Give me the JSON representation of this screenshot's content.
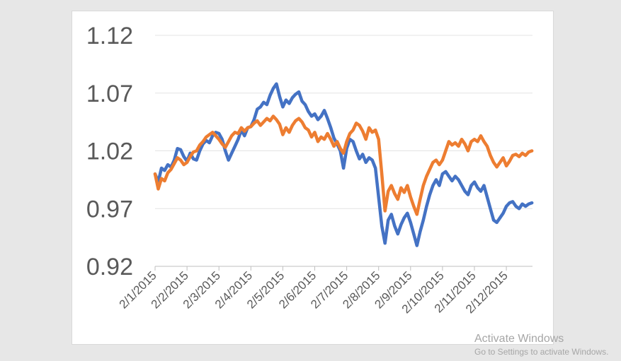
{
  "chart_data": {
    "type": "line",
    "title": "",
    "xlabel": "",
    "ylabel": "",
    "ylim": [
      0.92,
      1.12
    ],
    "y_ticks": [
      "0.92",
      "0.97",
      "1.02",
      "1.07",
      "1.12"
    ],
    "x_categories": [
      "2/1/2015",
      "2/2/2015",
      "2/3/2015",
      "2/4/2015",
      "2/5/2015",
      "2/6/2015",
      "2/7/2015",
      "2/8/2015",
      "2/9/2015",
      "2/10/2015",
      "2/11/2015",
      "2/12/2015"
    ],
    "grid": true,
    "legend": "none",
    "series": [
      {
        "color": "#4472c4",
        "x": [
          0,
          0.1,
          0.2,
          0.3,
          0.4,
          0.5,
          0.6,
          0.7,
          0.8,
          0.9,
          1.0,
          1.1,
          1.2,
          1.3,
          1.4,
          1.5,
          1.6,
          1.7,
          1.8,
          1.9,
          2.0,
          2.1,
          2.2,
          2.3,
          2.4,
          2.5,
          2.6,
          2.7,
          2.8,
          2.9,
          3.0,
          3.1,
          3.2,
          3.3,
          3.4,
          3.5,
          3.6,
          3.7,
          3.8,
          3.9,
          4.0,
          4.1,
          4.2,
          4.3,
          4.4,
          4.5,
          4.6,
          4.7,
          4.8,
          4.9,
          5.0,
          5.1,
          5.2,
          5.3,
          5.4,
          5.5,
          5.6,
          5.7,
          5.8,
          5.9,
          6.0,
          6.1,
          6.2,
          6.3,
          6.4,
          6.5,
          6.6,
          6.7,
          6.8,
          6.9,
          7.0,
          7.1,
          7.2,
          7.3,
          7.4,
          7.5,
          7.6,
          7.7,
          7.8,
          7.9,
          8.0,
          8.1,
          8.2,
          8.3,
          8.4,
          8.5,
          8.6,
          8.7,
          8.8,
          8.9,
          9.0,
          9.1,
          9.2,
          9.3,
          9.4,
          9.5,
          9.6,
          9.7,
          9.8,
          9.9,
          10.0,
          10.1,
          10.2,
          10.3,
          10.4,
          10.5,
          10.6,
          10.7,
          10.8,
          10.9,
          11.0,
          11.1,
          11.2,
          11.3,
          11.4,
          11.5,
          11.6,
          11.7,
          11.8
        ],
        "values": [
          1.0,
          0.993,
          1.005,
          1.003,
          1.008,
          1.006,
          1.012,
          1.022,
          1.021,
          1.015,
          1.011,
          1.018,
          1.013,
          1.012,
          1.02,
          1.026,
          1.029,
          1.027,
          1.033,
          1.036,
          1.035,
          1.03,
          1.02,
          1.012,
          1.018,
          1.024,
          1.03,
          1.038,
          1.033,
          1.04,
          1.041,
          1.047,
          1.056,
          1.058,
          1.062,
          1.06,
          1.068,
          1.074,
          1.078,
          1.067,
          1.058,
          1.064,
          1.061,
          1.066,
          1.069,
          1.071,
          1.063,
          1.06,
          1.054,
          1.05,
          1.052,
          1.047,
          1.05,
          1.055,
          1.048,
          1.04,
          1.031,
          1.026,
          1.02,
          1.005,
          1.022,
          1.03,
          1.028,
          1.02,
          1.013,
          1.017,
          1.01,
          1.014,
          1.012,
          1.005,
          0.98,
          0.955,
          0.94,
          0.96,
          0.965,
          0.955,
          0.948,
          0.956,
          0.962,
          0.966,
          0.958,
          0.948,
          0.938,
          0.95,
          0.96,
          0.972,
          0.982,
          0.99,
          0.995,
          0.99,
          1.0,
          1.002,
          0.998,
          0.994,
          0.998,
          0.995,
          0.99,
          0.985,
          0.982,
          0.99,
          0.993,
          0.988,
          0.985,
          0.99,
          0.98,
          0.97,
          0.96,
          0.958,
          0.962,
          0.966,
          0.972,
          0.975,
          0.976,
          0.972,
          0.97,
          0.974,
          0.972,
          0.974,
          0.975
        ]
      },
      {
        "color": "#ed7d31",
        "x": [
          0,
          0.1,
          0.2,
          0.3,
          0.4,
          0.5,
          0.6,
          0.7,
          0.8,
          0.9,
          1.0,
          1.1,
          1.2,
          1.3,
          1.4,
          1.5,
          1.6,
          1.7,
          1.8,
          1.9,
          2.0,
          2.1,
          2.2,
          2.3,
          2.4,
          2.5,
          2.6,
          2.7,
          2.8,
          2.9,
          3.0,
          3.1,
          3.2,
          3.3,
          3.4,
          3.5,
          3.6,
          3.7,
          3.8,
          3.9,
          4.0,
          4.1,
          4.2,
          4.3,
          4.4,
          4.5,
          4.6,
          4.7,
          4.8,
          4.9,
          5.0,
          5.1,
          5.2,
          5.3,
          5.4,
          5.5,
          5.6,
          5.7,
          5.8,
          5.9,
          6.0,
          6.1,
          6.2,
          6.3,
          6.4,
          6.5,
          6.6,
          6.7,
          6.8,
          6.9,
          7.0,
          7.1,
          7.2,
          7.3,
          7.4,
          7.5,
          7.6,
          7.7,
          7.8,
          7.9,
          8.0,
          8.1,
          8.2,
          8.3,
          8.4,
          8.5,
          8.6,
          8.7,
          8.8,
          8.9,
          9.0,
          9.1,
          9.2,
          9.3,
          9.4,
          9.5,
          9.6,
          9.7,
          9.8,
          9.9,
          10.0,
          10.1,
          10.2,
          10.3,
          10.4,
          10.5,
          10.6,
          10.7,
          10.8,
          10.9,
          11.0,
          11.1,
          11.2,
          11.3,
          11.4,
          11.5,
          11.6,
          11.7,
          11.8
        ],
        "values": [
          1.0,
          0.987,
          0.996,
          0.994,
          1.001,
          1.004,
          1.009,
          1.014,
          1.012,
          1.008,
          1.01,
          1.015,
          1.019,
          1.02,
          1.025,
          1.028,
          1.032,
          1.034,
          1.036,
          1.033,
          1.03,
          1.026,
          1.023,
          1.028,
          1.033,
          1.036,
          1.035,
          1.04,
          1.037,
          1.04,
          1.041,
          1.044,
          1.046,
          1.042,
          1.045,
          1.048,
          1.046,
          1.05,
          1.047,
          1.043,
          1.034,
          1.04,
          1.036,
          1.042,
          1.046,
          1.048,
          1.045,
          1.04,
          1.038,
          1.032,
          1.036,
          1.028,
          1.032,
          1.03,
          1.035,
          1.03,
          1.024,
          1.028,
          1.022,
          1.018,
          1.028,
          1.035,
          1.038,
          1.044,
          1.042,
          1.037,
          1.03,
          1.04,
          1.036,
          1.038,
          1.03,
          1.0,
          0.968,
          0.985,
          0.99,
          0.983,
          0.978,
          0.988,
          0.984,
          0.99,
          0.98,
          0.972,
          0.965,
          0.978,
          0.99,
          0.998,
          1.004,
          1.01,
          1.012,
          1.008,
          1.012,
          1.02,
          1.028,
          1.025,
          1.027,
          1.024,
          1.03,
          1.026,
          1.02,
          1.028,
          1.03,
          1.028,
          1.033,
          1.028,
          1.024,
          1.016,
          1.01,
          1.006,
          1.01,
          1.014,
          1.007,
          1.011,
          1.016,
          1.017,
          1.015,
          1.018,
          1.016,
          1.019,
          1.02
        ]
      }
    ]
  },
  "watermark": {
    "title": "Activate Windows",
    "subtitle": "Go to Settings to activate Windows."
  }
}
